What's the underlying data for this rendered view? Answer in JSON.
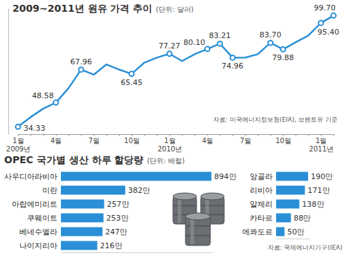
{
  "chart_data": [
    {
      "type": "line",
      "title": "2009~2011년 원유 가격 추이",
      "subtitle": "(단위: 달러)",
      "source": "자료: 미국에너지정보청(EIA), 브렌트유 기준",
      "categories": [
        "1월\n2009년",
        null,
        null,
        "4월",
        null,
        null,
        "7월",
        null,
        null,
        "10월",
        null,
        null,
        "1월\n2010년",
        null,
        null,
        "4월",
        null,
        null,
        "7월",
        null,
        null,
        "10월",
        null,
        null,
        "1월\n2011년",
        null
      ],
      "values": [
        34.33,
        40,
        45,
        48.58,
        57,
        67.96,
        65,
        71,
        68,
        65.45,
        72,
        75,
        77.27,
        73,
        77,
        80.1,
        83.21,
        74.96,
        75,
        77,
        83.7,
        79.88,
        84,
        88,
        95.4,
        99.7
      ],
      "value_labels": [
        "34.33",
        null,
        null,
        "48.58",
        null,
        "67.96",
        null,
        null,
        null,
        "65.45",
        null,
        null,
        "77.27",
        null,
        null,
        "80.10",
        "83.21",
        "74.96",
        null,
        null,
        "83.70",
        "79.88",
        null,
        null,
        "95.40",
        "99.70"
      ],
      "color": "#2a8fd6",
      "marker": "circle",
      "data_labels": true,
      "ylim": [
        30,
        104
      ],
      "tick_labels": "x"
    },
    {
      "type": "bar",
      "orientation": "horizontal",
      "title": "OPEC 국가별 생산 하루 할당량",
      "subtitle": "(단위: 배럴)",
      "categories": [
        "사우디아라비아",
        "이란",
        "아랍에미리트",
        "쿠웨이트",
        "베네수엘라",
        "나이지리아"
      ],
      "values": [
        894,
        382,
        257,
        253,
        247,
        216
      ],
      "value_labels": [
        "894만",
        "382만",
        "257만",
        "253만",
        "247만",
        "216만"
      ],
      "color": "#2a8fd6",
      "xlim": [
        0,
        900
      ],
      "data_labels": true,
      "tick_labels": "y"
    },
    {
      "type": "bar",
      "orientation": "horizontal",
      "source": "자료: 국제에너지기구(IEA)",
      "categories": [
        "앙골라",
        "리비아",
        "알제리",
        "카타르",
        "에콰도르"
      ],
      "values": [
        190,
        171,
        138,
        88,
        50
      ],
      "value_labels": [
        "190만",
        "171만",
        "138만",
        "88만",
        "50만"
      ],
      "color": "#2a8fd6",
      "xlim": [
        0,
        200
      ],
      "data_labels": true,
      "tick_labels": "y"
    }
  ]
}
